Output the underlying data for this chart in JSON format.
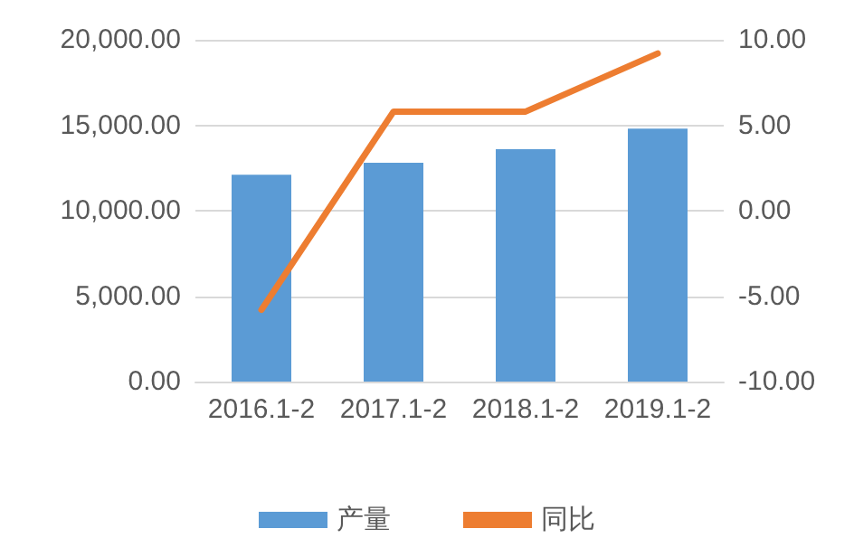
{
  "chart_data": {
    "type": "bar",
    "categories": [
      "2016.1-2",
      "2017.1-2",
      "2018.1-2",
      "2019.1-2"
    ],
    "series": [
      {
        "name": "产量",
        "color": "#5b9bd5",
        "values": [
          12100,
          12800,
          13600,
          14800
        ]
      },
      {
        "name": "同比",
        "type": "line",
        "axis": "y2",
        "color": "#ed7d31",
        "values": [
          -5.8,
          5.8,
          5.8,
          9.2
        ]
      }
    ],
    "ylim": [
      0,
      20000
    ],
    "yticks": [
      {
        "value": 0,
        "label": "0.00"
      },
      {
        "value": 5000,
        "label": "5,000.00"
      },
      {
        "value": 10000,
        "label": "10,000.00"
      },
      {
        "value": 15000,
        "label": "15,000.00"
      },
      {
        "value": 20000,
        "label": "20,000.00"
      }
    ],
    "y2lim": [
      -10,
      10
    ],
    "y2ticks": [
      {
        "value": -10,
        "label": "-10.00"
      },
      {
        "value": -5,
        "label": "-5.00"
      },
      {
        "value": 0,
        "label": "0.00"
      },
      {
        "value": 5,
        "label": "5.00"
      },
      {
        "value": 10,
        "label": "10.00"
      }
    ],
    "grid": "y",
    "legend": "bottom",
    "marker": "none"
  }
}
